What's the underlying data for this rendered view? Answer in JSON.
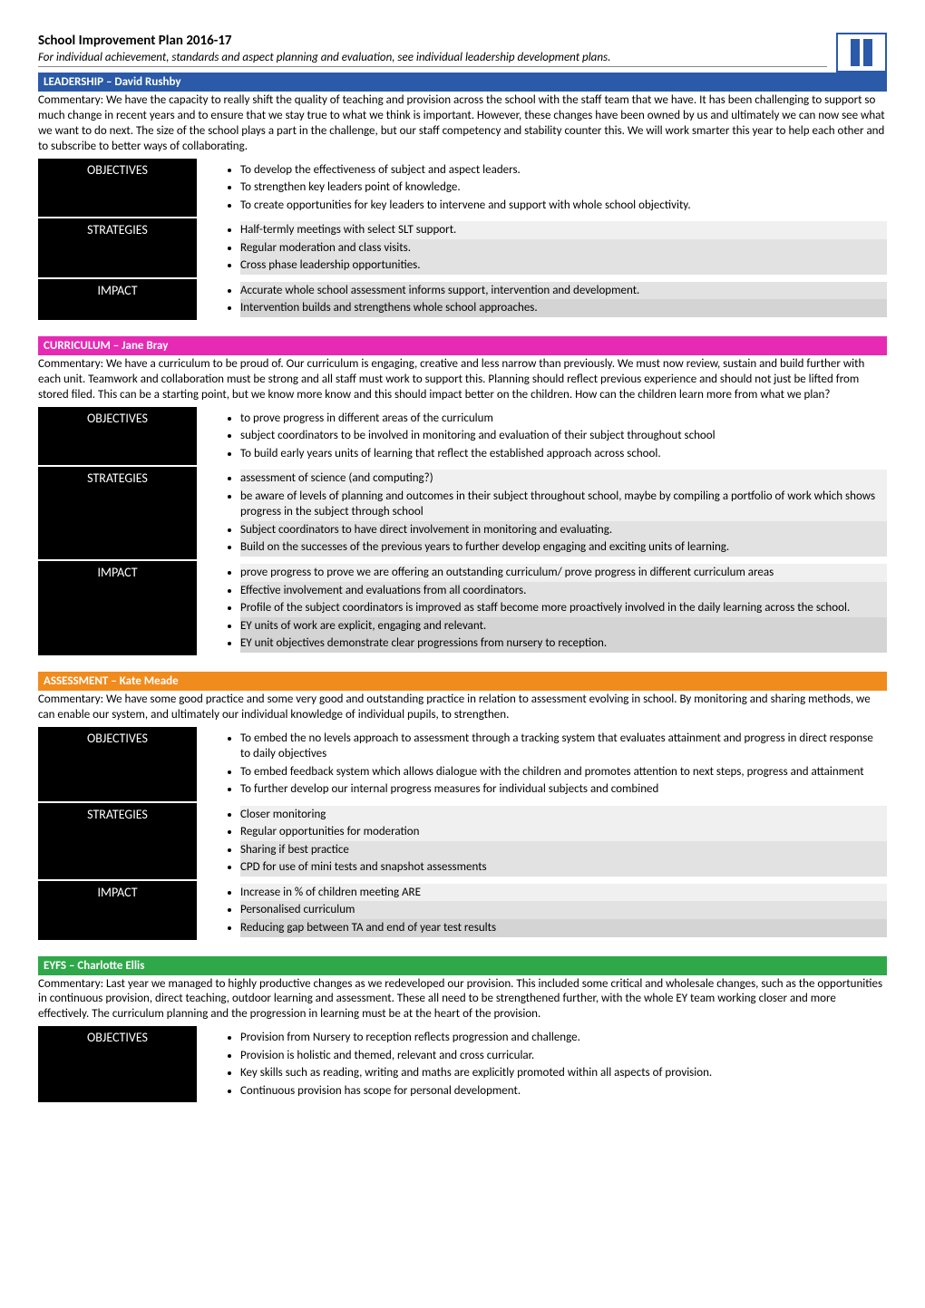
{
  "doc": {
    "title": "School Improvement Plan 2016-17",
    "subtitle": "For individual achievement, standards and aspect planning and evaluation, see individual leadership development plans."
  },
  "colors": {
    "leadership": "#2a5aa8",
    "curriculum": "#e62ab3",
    "assessment": "#f08c1e",
    "eyfs": "#2fa84a",
    "labelBg": "#000000",
    "logoBorder": "#2a5aa8"
  },
  "sections": [
    {
      "key": "leadership",
      "heading": "LEADERSHIP – David Rushby",
      "commentary": "Commentary: We have the capacity to really shift the quality of teaching and provision across the school with the staff team that we have. It has been challenging to support so much change in recent years and to ensure that we stay true to what we think is important. However, these changes have been owned by us and ultimately we can now see what we want to do next. The size of the school plays a part in the challenge, but our staff competency and stability counter this. We will work smarter this year to help each other and to subscribe to better ways of collaborating.",
      "rows": [
        {
          "label": "OBJECTIVES",
          "shades": [
            "",
            "",
            ""
          ],
          "items": [
            "To develop the effectiveness of subject and aspect leaders.",
            "To strengthen key leaders point of knowledge.",
            "To create opportunities for key leaders to intervene and support with whole school objectivity."
          ]
        },
        {
          "label": "STRATEGIES",
          "shades": [
            "shade-1",
            "shade-2",
            "shade-2"
          ],
          "items": [
            "Half-termly meetings with select SLT support.",
            "Regular moderation and class visits.",
            "Cross phase leadership opportunities."
          ]
        },
        {
          "label": "IMPACT",
          "shades": [
            "shade-2",
            "shade-3"
          ],
          "items": [
            "Accurate whole school assessment informs support, intervention and development.",
            "Intervention builds and strengthens whole school approaches."
          ]
        }
      ]
    },
    {
      "key": "curriculum",
      "heading": "CURRICULUM – Jane Bray",
      "commentary": "Commentary: We have a curriculum to be proud of. Our curriculum is engaging, creative and less narrow than previously. We must now review, sustain and build further with each unit. Teamwork and collaboration must be strong and all staff must work to support this. Planning should reflect previous experience and should not just be lifted from stored filed. This can be a starting point, but we know more know and this should impact better on the children. How can the children learn more from what we plan?",
      "rows": [
        {
          "label": "OBJECTIVES",
          "shades": [
            "",
            "",
            ""
          ],
          "items": [
            "to prove progress in different areas of the curriculum",
            "subject coordinators to be involved in monitoring and evaluation of their subject throughout school",
            "To build early years units of learning that reflect the established approach across school."
          ]
        },
        {
          "label": "STRATEGIES",
          "shades": [
            "shade-1",
            "shade-1",
            "shade-2",
            "shade-2"
          ],
          "items": [
            "assessment of science (and computing?)",
            "be aware of levels of planning and outcomes in their subject throughout school, maybe by compiling a portfolio of work which shows progress in the subject through school",
            "Subject coordinators to have direct involvement in monitoring and evaluating.",
            "Build on the successes of the previous years to further develop engaging and exciting units of learning."
          ]
        },
        {
          "label": "IMPACT",
          "shades": [
            "shade-1",
            "shade-2",
            "shade-2",
            "shade-3",
            "shade-3"
          ],
          "items": [
            "prove progress to prove we are offering an outstanding curriculum/ prove progress in different curriculum areas",
            "Effective involvement and evaluations from all coordinators.",
            "Profile of the subject coordinators is improved as staff become more proactively involved in the daily learning across the school.",
            "EY units of work are explicit, engaging and relevant.",
            "EY unit objectives demonstrate clear progressions from nursery to reception."
          ]
        }
      ]
    },
    {
      "key": "assessment",
      "heading": "ASSESSMENT – Kate Meade",
      "commentary": "Commentary: We have some good practice and some very good and outstanding practice in relation to assessment evolving in school. By monitoring and sharing methods, we can enable our system, and ultimately our individual knowledge of individual pupils, to strengthen.",
      "rows": [
        {
          "label": "OBJECTIVES",
          "shades": [
            "",
            "",
            ""
          ],
          "items": [
            "To embed the no levels approach to assessment through a tracking system that evaluates attainment and progress in direct response  to daily objectives",
            "To embed feedback system which allows dialogue with the children and promotes attention to next steps, progress and attainment",
            "To further develop our internal progress measures for individual subjects and combined"
          ]
        },
        {
          "label": "STRATEGIES",
          "shades": [
            "shade-1",
            "shade-1",
            "shade-2",
            "shade-2"
          ],
          "items": [
            "Closer monitoring",
            "Regular opportunities for moderation",
            "Sharing if best practice",
            "CPD for use of mini tests and snapshot assessments"
          ]
        },
        {
          "label": "IMPACT",
          "shades": [
            "shade-1",
            "shade-2",
            "shade-3"
          ],
          "items": [
            "Increase in % of children meeting ARE",
            "Personalised curriculum",
            "Reducing gap between TA and end of year test results"
          ]
        }
      ]
    },
    {
      "key": "eyfs",
      "heading": "EYFS – Charlotte Ellis",
      "commentary": "Commentary: Last year we managed to highly productive changes as we redeveloped our provision. This included some critical and wholesale changes, such as the opportunities in continuous provision, direct teaching, outdoor learning and assessment. These all need to be strengthened further, with the whole EY team working closer and more effectively. The curriculum planning and the progression in learning must be at the heart of the provision.",
      "rows": [
        {
          "label": "OBJECTIVES",
          "shades": [
            "",
            "",
            "",
            ""
          ],
          "items": [
            "Provision from Nursery to reception reflects progression and challenge.",
            "Provision is holistic and themed, relevant and cross curricular.",
            "Key skills such as reading, writing and maths are explicitly promoted within all aspects of provision.",
            "Continuous provision has scope for personal development."
          ]
        }
      ]
    }
  ]
}
